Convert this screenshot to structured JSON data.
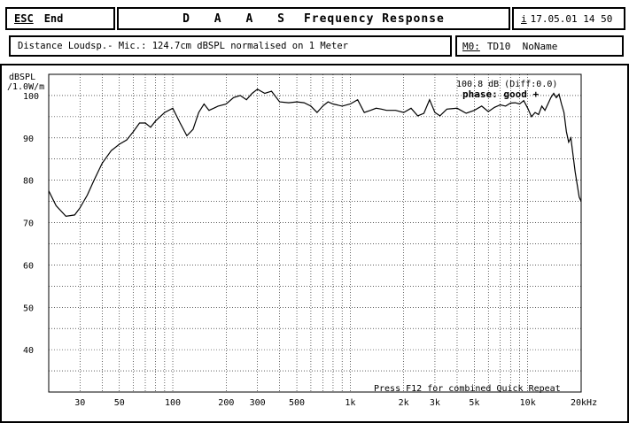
{
  "header": {
    "esc_label": "ESC",
    "end_label": "End",
    "app_name": "D A A S",
    "title": "Frequency Response",
    "info_icon_label": "i",
    "datetime": "17.05.01 14 50"
  },
  "status": {
    "description": "Distance Loudsp.- Mic.: 124.7cm dBSPL normalised on 1 Meter",
    "memory_label": "M0:",
    "memory_value": "TD10  NoName"
  },
  "chart_data": {
    "type": "line",
    "ylabel": "dBSPL\n/1.0W/m",
    "ylabel_line1": "dBSPL",
    "ylabel_line2": "/1.0W/m",
    "xlabel": "",
    "x_scale": "log",
    "xlim": [
      20,
      20000
    ],
    "ylim": [
      30,
      105
    ],
    "yticks": [
      40,
      50,
      60,
      70,
      80,
      90,
      100
    ],
    "xticks": [
      {
        "value": 30,
        "label": "30"
      },
      {
        "value": 50,
        "label": "50"
      },
      {
        "value": 100,
        "label": "100"
      },
      {
        "value": 200,
        "label": "200"
      },
      {
        "value": 300,
        "label": "300"
      },
      {
        "value": 500,
        "label": "500"
      },
      {
        "value": 1000,
        "label": "1k"
      },
      {
        "value": 2000,
        "label": "2k"
      },
      {
        "value": 3000,
        "label": "3k"
      },
      {
        "value": 5000,
        "label": "5k"
      },
      {
        "value": 10000,
        "label": "10k"
      },
      {
        "value": 20000,
        "label": "20kHz"
      }
    ],
    "grid": true,
    "annotations": {
      "level": "100.8 dB (Diff:0.0)",
      "phase": "phase: good +",
      "footer": "Press F12 for combined Quick Repeat"
    },
    "series": [
      {
        "x": [
          20,
          22,
          25,
          28,
          30,
          33,
          36,
          40,
          45,
          50,
          55,
          60,
          65,
          70,
          75,
          80,
          90,
          100,
          110,
          120,
          130,
          140,
          150,
          160,
          170,
          180,
          200,
          220,
          240,
          260,
          280,
          300,
          330,
          360,
          400,
          450,
          500,
          550,
          600,
          650,
          700,
          750,
          800,
          900,
          1000,
          1100,
          1200,
          1300,
          1400,
          1500,
          1600,
          1800,
          2000,
          2200,
          2400,
          2600,
          2800,
          3000,
          3200,
          3500,
          4000,
          4500,
          5000,
          5500,
          6000,
          6500,
          7000,
          7500,
          8000,
          8500,
          9000,
          9500,
          10000,
          10500,
          11000,
          11500,
          12000,
          12500,
          13000,
          13500,
          14000,
          14500,
          15000,
          15500,
          16000,
          16500,
          17000,
          17500,
          18000,
          18500,
          19000,
          19500,
          20000
        ],
        "values": [
          77.5,
          74,
          71.5,
          71.8,
          73.5,
          76.5,
          80,
          84,
          87,
          88.5,
          89.5,
          91.5,
          93.5,
          93.5,
          92.5,
          94,
          96,
          97,
          93.5,
          90.5,
          92,
          96,
          98,
          96.5,
          97,
          97.5,
          98,
          99.5,
          100,
          99,
          100.5,
          101.5,
          100.5,
          101,
          98.5,
          98.3,
          98.5,
          98.3,
          97.5,
          96,
          97.5,
          98.5,
          98,
          97.5,
          98,
          99,
          96,
          96.5,
          97,
          96.8,
          96.5,
          96.5,
          96,
          97,
          95.2,
          95.8,
          99,
          96,
          95.2,
          96.8,
          97,
          95.8,
          96.5,
          97.5,
          96.2,
          97.2,
          97.8,
          97.5,
          98.2,
          98.3,
          98,
          98.8,
          97,
          95,
          96,
          95.5,
          97.5,
          96.5,
          98,
          99.5,
          100.5,
          99.5,
          100.3,
          98,
          96,
          91.5,
          89,
          90,
          86,
          82,
          79,
          76,
          75
        ]
      }
    ]
  }
}
